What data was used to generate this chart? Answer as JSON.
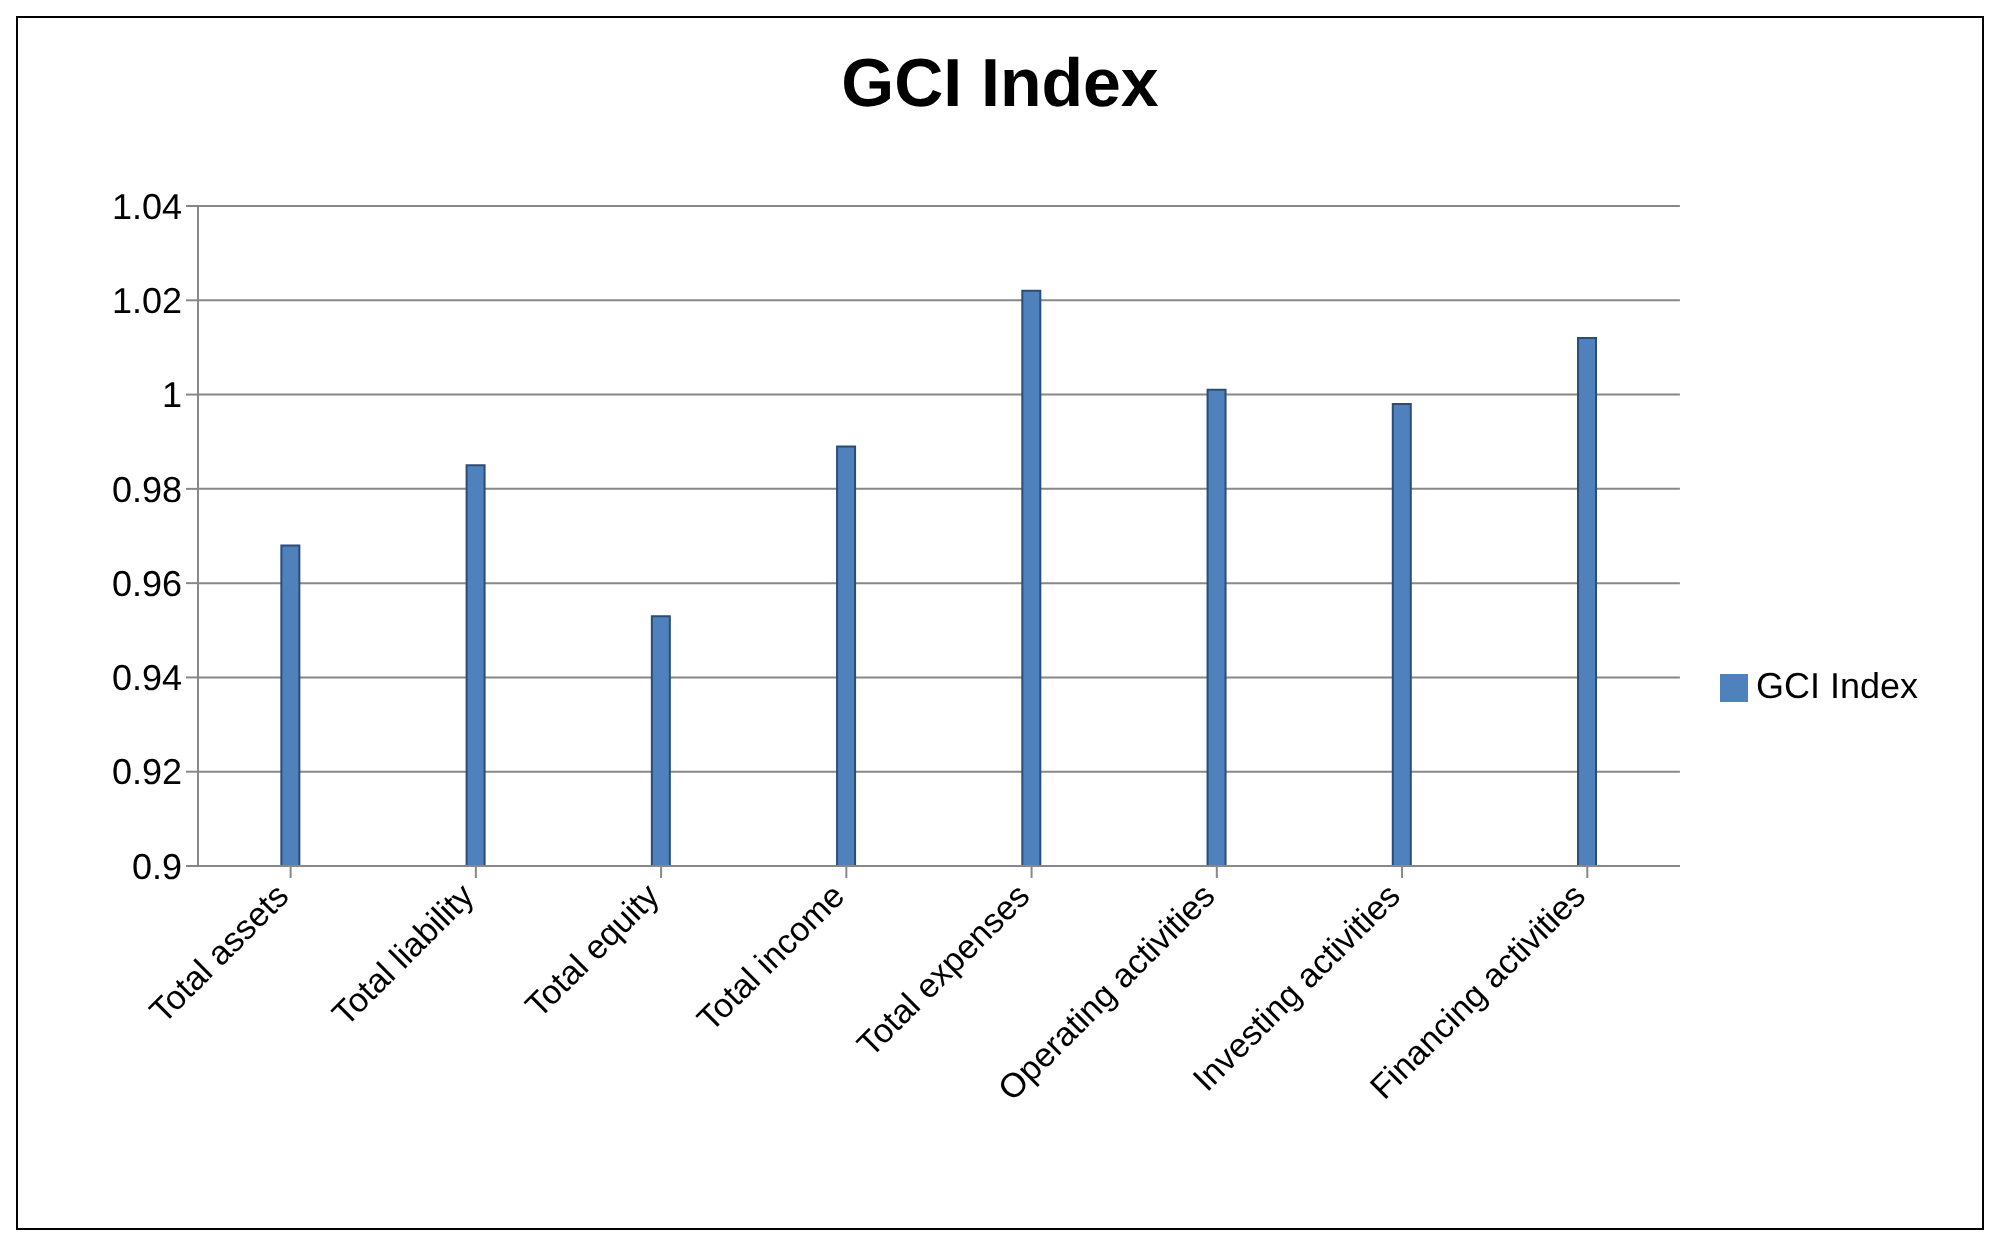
{
  "chart_data": {
    "type": "bar",
    "title": "GCI Index",
    "categories": [
      "Total assets",
      "Total liability",
      "Total equity",
      "Total income",
      "Total expenses",
      "Operating activities",
      "Investing activities",
      "Financing activities"
    ],
    "series": [
      {
        "name": "GCI Index",
        "color": "#4f81bd",
        "values": [
          0.968,
          0.985,
          0.953,
          0.989,
          1.022,
          1.001,
          0.998,
          1.012
        ]
      }
    ],
    "ylim": [
      0.9,
      1.04
    ],
    "yticks": [
      0.9,
      0.92,
      0.94,
      0.96,
      0.98,
      1,
      1.02,
      1.04
    ],
    "grid": "y",
    "legend": "right"
  }
}
